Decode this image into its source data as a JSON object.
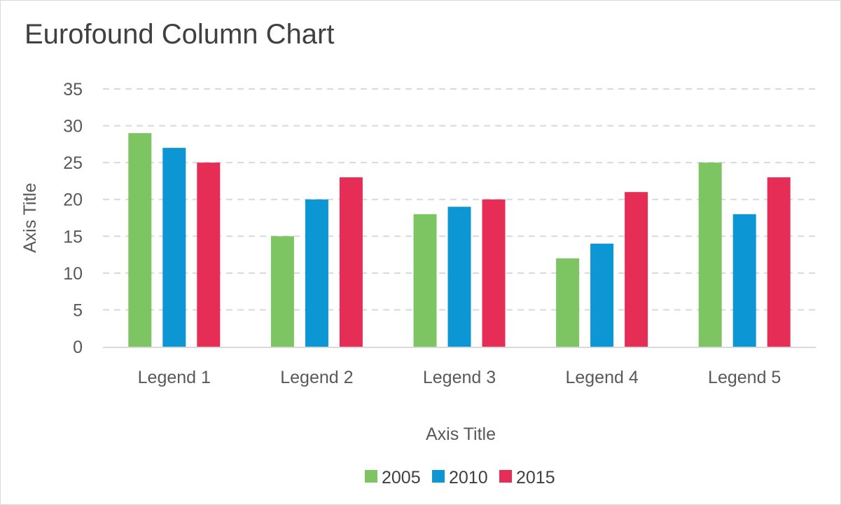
{
  "chart_data": {
    "type": "bar",
    "title": "Eurofound Column Chart",
    "xlabel": "Axis Title",
    "ylabel": "Axis Title",
    "categories": [
      "Legend 1",
      "Legend 2",
      "Legend 3",
      "Legend 4",
      "Legend 5"
    ],
    "series": [
      {
        "name": "2005",
        "color": "#7dc462",
        "values": [
          29,
          15,
          18,
          12,
          25
        ]
      },
      {
        "name": "2010",
        "color": "#0d96d4",
        "values": [
          27,
          20,
          19,
          14,
          18
        ]
      },
      {
        "name": "2015",
        "color": "#e62d55",
        "values": [
          25,
          23,
          20,
          21,
          23
        ]
      }
    ],
    "ylim": [
      0,
      35
    ],
    "yticks": [
      "0",
      "5",
      "10",
      "15",
      "20",
      "25",
      "30",
      "35"
    ],
    "grid": "horizontal-dashed",
    "legend_position": "bottom"
  }
}
